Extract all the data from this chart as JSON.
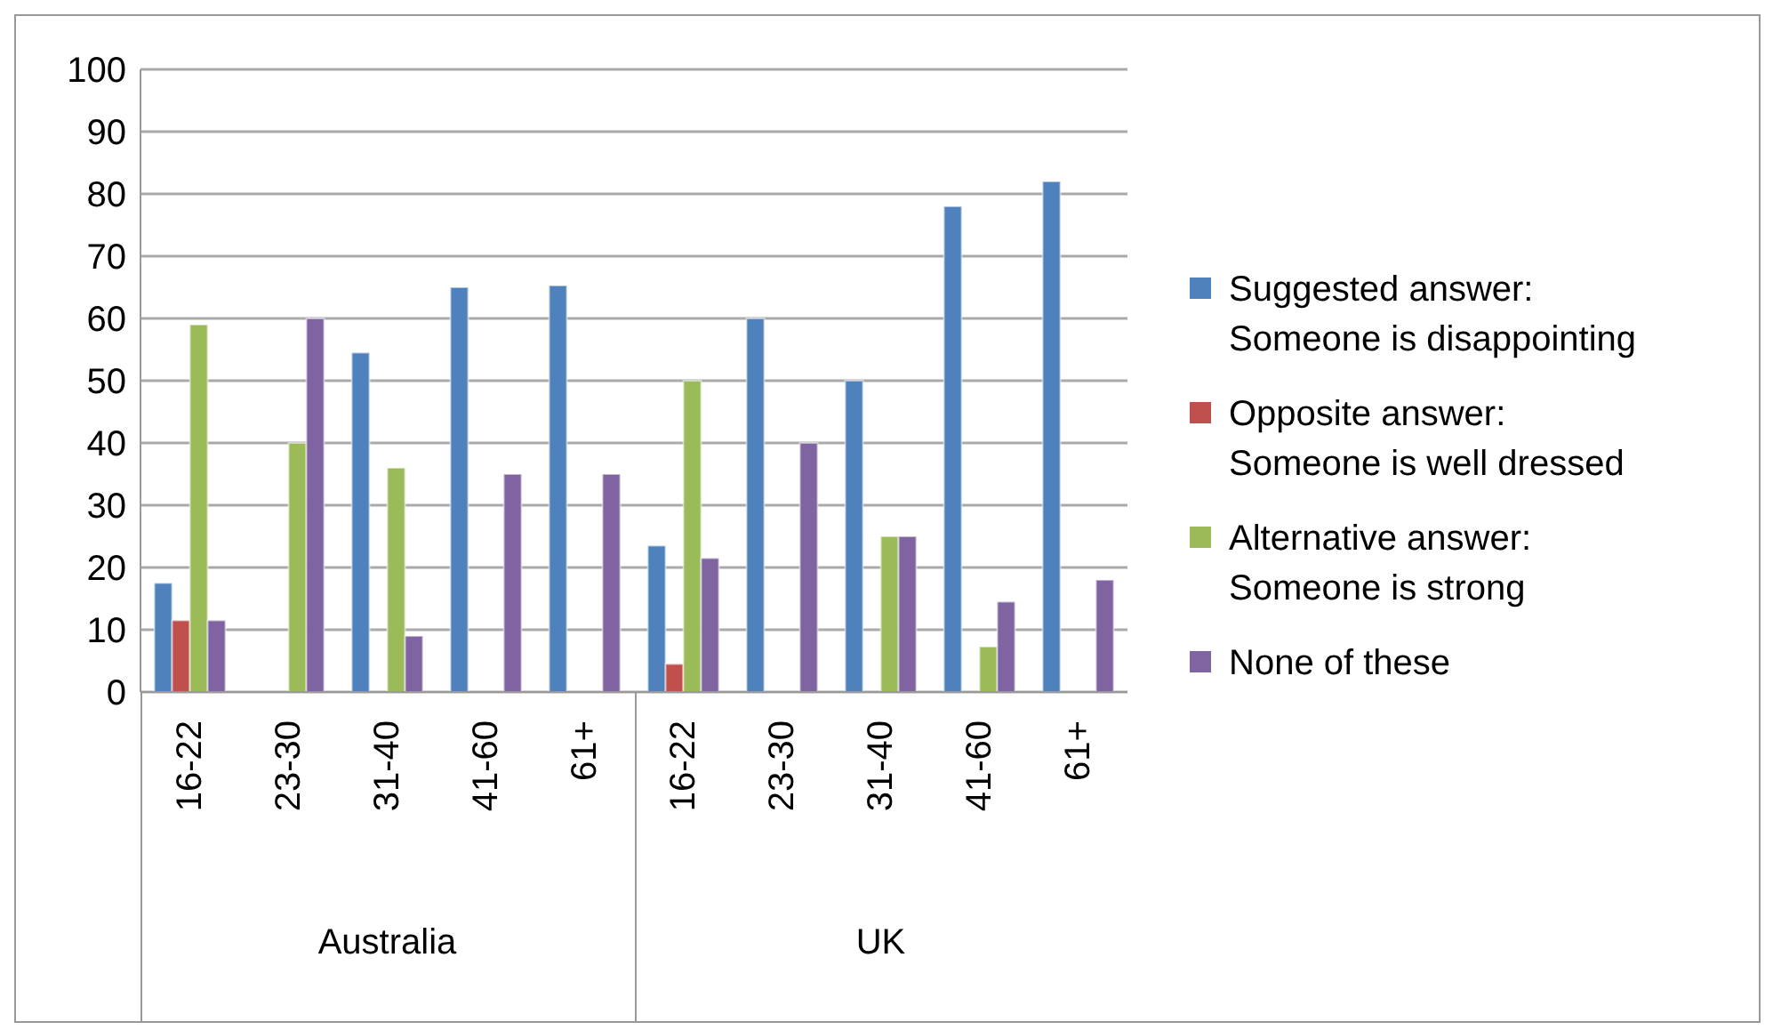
{
  "chart_data": {
    "type": "bar",
    "categories": [
      "16-22",
      "23-30",
      "31-40",
      "41-60",
      "61+",
      "16-22",
      "23-30",
      "31-40",
      "41-60",
      "61+"
    ],
    "series": [
      {
        "name": "Suggested answer: Someone is disappointing",
        "color": "#4f81bd",
        "values": [
          17.5,
          0,
          54.5,
          65,
          65.3,
          23.5,
          60,
          50,
          78,
          82
        ]
      },
      {
        "name": "Opposite answer: Someone is well dressed",
        "color": "#c0504d",
        "values": [
          11.5,
          0,
          0,
          0,
          0,
          4.5,
          0,
          0,
          0,
          0
        ]
      },
      {
        "name": "Alternative answer: Someone is strong",
        "color": "#9bbb59",
        "values": [
          59,
          40,
          36,
          0,
          0,
          50,
          0,
          25,
          7.3,
          0
        ]
      },
      {
        "name": "None of these",
        "color": "#8064a2",
        "values": [
          11.5,
          60,
          9,
          35,
          35,
          21.5,
          40,
          25,
          14.5,
          18
        ]
      }
    ],
    "annotations": [
      "Australia",
      "UK"
    ],
    "ylim": [
      0,
      100
    ],
    "yticks": [
      0,
      10,
      20,
      30,
      40,
      50,
      60,
      70,
      80,
      90,
      100
    ],
    "grid": "y",
    "legend": "right"
  }
}
